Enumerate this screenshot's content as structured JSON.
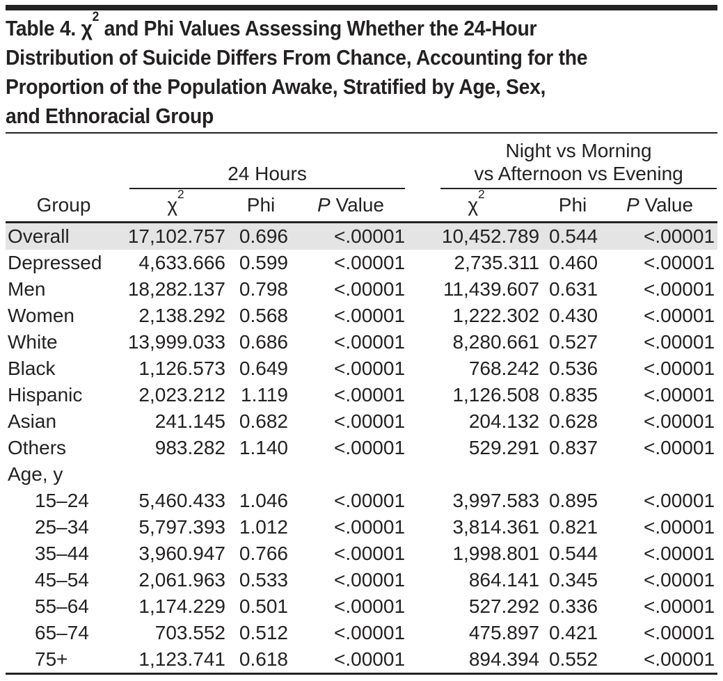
{
  "title": {
    "line1_pre": "Table 4. χ",
    "line1_sup": "2",
    "line1_post": " and Phi Values Assessing Whether the 24-Hour",
    "line2": "Distribution of Suicide Differs From Chance, Accounting for the",
    "line3": "Proportion of the Population Awake, Stratified by Age, Sex,",
    "line4": "and Ethnoracial Group"
  },
  "header": {
    "group_label": "Group",
    "spanner1": "24 Hours",
    "spanner2_line1": "Night vs Morning",
    "spanner2_line2": "vs Afternoon vs Evening",
    "chi_symbol": "χ",
    "chi_sup": "2",
    "phi_label": "Phi",
    "p_italic": "P",
    "p_rest": " Value"
  },
  "colors": {
    "text": "#242122",
    "rule": "#242122",
    "shaded_row": "#e4e4e4",
    "background": "#ffffff"
  },
  "table": {
    "column_keys": [
      "group",
      "chi2_24h",
      "phi_24h",
      "p_24h",
      "chi2_nmae",
      "phi_nmae",
      "p_nmae"
    ],
    "rows": [
      {
        "group": "Overall",
        "indent": false,
        "shaded": true,
        "values": [
          "17,102.757",
          "0.696",
          "<.00001",
          "10,452.789",
          "0.544",
          "<.00001"
        ]
      },
      {
        "group": "Depressed",
        "indent": false,
        "shaded": false,
        "values": [
          "4,633.666",
          "0.599",
          "<.00001",
          "2,735.311",
          "0.460",
          "<.00001"
        ]
      },
      {
        "group": "Men",
        "indent": false,
        "shaded": false,
        "values": [
          "18,282.137",
          "0.798",
          "<.00001",
          "11,439.607",
          "0.631",
          "<.00001"
        ]
      },
      {
        "group": "Women",
        "indent": false,
        "shaded": false,
        "values": [
          "2,138.292",
          "0.568",
          "<.00001",
          "1,222.302",
          "0.430",
          "<.00001"
        ]
      },
      {
        "group": "White",
        "indent": false,
        "shaded": false,
        "values": [
          "13,999.033",
          "0.686",
          "<.00001",
          "8,280.661",
          "0.527",
          "<.00001"
        ]
      },
      {
        "group": "Black",
        "indent": false,
        "shaded": false,
        "values": [
          "1,126.573",
          "0.649",
          "<.00001",
          "768.242",
          "0.536",
          "<.00001"
        ]
      },
      {
        "group": "Hispanic",
        "indent": false,
        "shaded": false,
        "values": [
          "2,023.212",
          "1.119",
          "<.00001",
          "1,126.508",
          "0.835",
          "<.00001"
        ]
      },
      {
        "group": "Asian",
        "indent": false,
        "shaded": false,
        "values": [
          "241.145",
          "0.682",
          "<.00001",
          "204.132",
          "0.628",
          "<.00001"
        ]
      },
      {
        "group": "Others",
        "indent": false,
        "shaded": false,
        "values": [
          "983.282",
          "1.140",
          "<.00001",
          "529.291",
          "0.837",
          "<.00001"
        ]
      },
      {
        "group": "Age, y",
        "indent": false,
        "shaded": false,
        "values": [
          "",
          "",
          "",
          "",
          "",
          ""
        ]
      },
      {
        "group": "15–24",
        "indent": true,
        "shaded": false,
        "values": [
          "5,460.433",
          "1.046",
          "<.00001",
          "3,997.583",
          "0.895",
          "<.00001"
        ]
      },
      {
        "group": "25–34",
        "indent": true,
        "shaded": false,
        "values": [
          "5,797.393",
          "1.012",
          "<.00001",
          "3,814.361",
          "0.821",
          "<.00001"
        ]
      },
      {
        "group": "35–44",
        "indent": true,
        "shaded": false,
        "values": [
          "3,960.947",
          "0.766",
          "<.00001",
          "1,998.801",
          "0.544",
          "<.00001"
        ]
      },
      {
        "group": "45–54",
        "indent": true,
        "shaded": false,
        "values": [
          "2,061.963",
          "0.533",
          "<.00001",
          "864.141",
          "0.345",
          "<.00001"
        ]
      },
      {
        "group": "55–64",
        "indent": true,
        "shaded": false,
        "values": [
          "1,174.229",
          "0.501",
          "<.00001",
          "527.292",
          "0.336",
          "<.00001"
        ]
      },
      {
        "group": "65–74",
        "indent": true,
        "shaded": false,
        "values": [
          "703.552",
          "0.512",
          "<.00001",
          "475.897",
          "0.421",
          "<.00001"
        ]
      },
      {
        "group": "75+",
        "indent": true,
        "shaded": false,
        "values": [
          "1,123.741",
          "0.618",
          "<.00001",
          "894.394",
          "0.552",
          "<.00001"
        ]
      }
    ]
  }
}
